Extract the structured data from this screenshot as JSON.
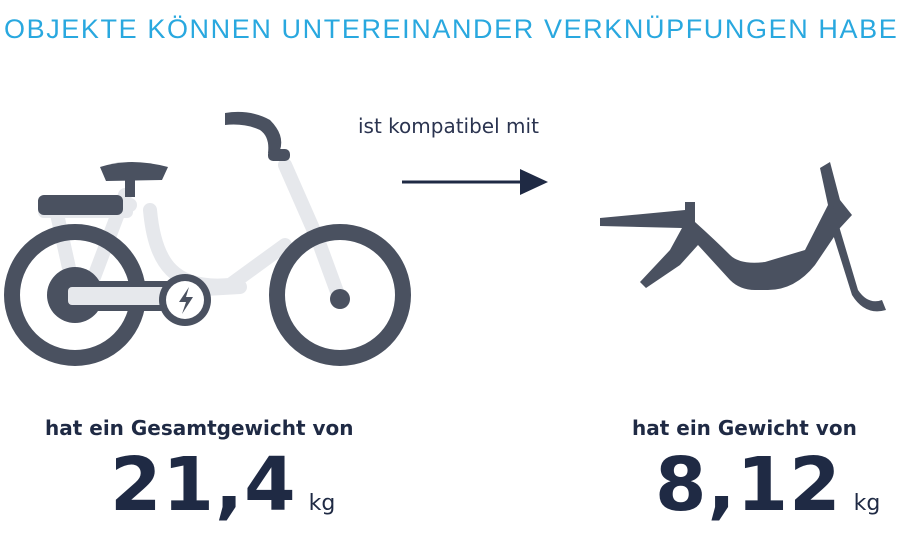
{
  "title": "OBJEKTE KÖNNEN UNTEREINANDER VERKNÜPFUNGEN HABEN",
  "relation_label": "ist kompatibel mit",
  "left": {
    "icon": "e-bike-icon",
    "caption": "hat ein Gesamtgewicht von",
    "value": "21,4",
    "unit": "kg"
  },
  "right": {
    "icon": "bike-frame-icon",
    "caption": "hat ein Gewicht von",
    "value": "8,12",
    "unit": "kg"
  },
  "colors": {
    "title": "#29a8df",
    "dark": "#4a5160",
    "light": "#e6e8ec",
    "text": "#1f2a44"
  }
}
